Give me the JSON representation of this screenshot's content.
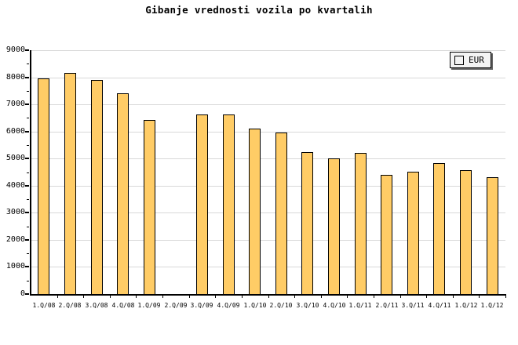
{
  "title": "Gibanje vrednosti vozila po kvartalih",
  "legend": {
    "label": "EUR",
    "swatch_color": "#FFCC66"
  },
  "colors": {
    "background": "#FFFFFF",
    "bar_fill": "#FFCC66",
    "bar_border": "#000000",
    "gridline": "#D9D9D9",
    "axis": "#000000",
    "text": "#000000",
    "legend_background": "#F4F4F4",
    "legend_shadow": "#666666"
  },
  "chart_data": {
    "type": "bar",
    "title": "Gibanje vrednosti vozila po kvartalih",
    "categories": [
      "1.Q/08",
      "2.Q/08",
      "3.Q/08",
      "4.Q/08",
      "1.Q/09",
      "2.Q/09",
      "3.Q/09",
      "4.Q/09",
      "1.Q/10",
      "2.Q/10",
      "3.Q/10",
      "4.Q/10",
      "1.Q/11",
      "2.Q/11",
      "3.Q/11",
      "4.Q/11",
      "1.Q/12",
      "1.Q/12"
    ],
    "series": [
      {
        "name": "EUR",
        "values": [
          7950,
          8150,
          7900,
          7400,
          6410,
          null,
          6620,
          6620,
          6120,
          5960,
          5250,
          5010,
          5200,
          4410,
          4510,
          4820,
          4560,
          4300
        ]
      }
    ],
    "xlabel": "",
    "ylabel": "",
    "ylim": [
      0,
      9000
    ],
    "ytick_interval": 1000,
    "ytick_minor_interval": 500,
    "yticks": [
      0,
      1000,
      2000,
      3000,
      4000,
      5000,
      6000,
      7000,
      8000,
      9000
    ],
    "grid": true,
    "legend_position": "top-right",
    "missing_categories": [
      "2.Q/09"
    ]
  }
}
